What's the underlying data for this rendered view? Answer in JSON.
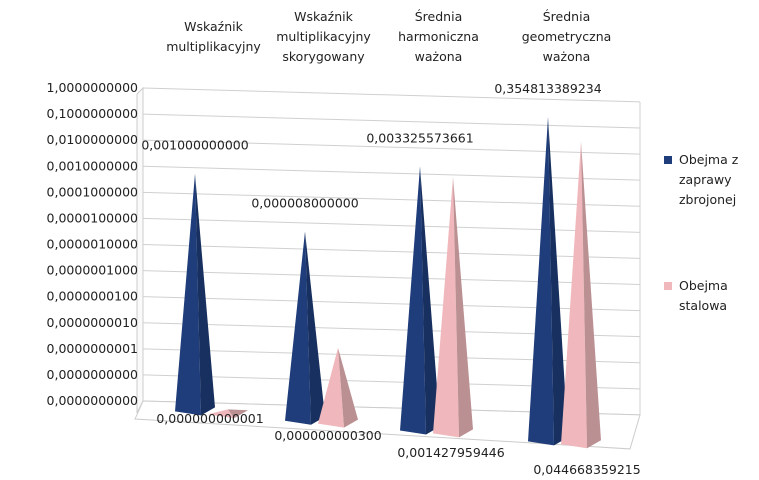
{
  "chart_data": {
    "type": "pyramid3d",
    "categories": [
      "Wskaźnik multiplikacyjny",
      "Wskaźnik multiplikacyjny skorygowany",
      "Średnia harmoniczna ważona",
      "Średnia geometryczna ważona"
    ],
    "series": [
      {
        "name": "Obejma z zaprawy zbrojonej",
        "color": "#1f3d7a",
        "values": [
          0.001,
          8e-06,
          0.003325573661,
          0.354813389234
        ],
        "value_labels": [
          "0,001000000000",
          "0,000008000000",
          "0,003325573661",
          "0,354813389234"
        ]
      },
      {
        "name": "Obejma stalowa",
        "color": "#f0b8bd",
        "values": [
          1e-12,
          3e-10,
          0.001427959446,
          0.044668359215
        ],
        "value_labels": [
          "0,000000000001",
          "0,000000000300",
          "0,001427959446",
          "0,044668359215"
        ]
      }
    ],
    "log_scale": true,
    "ylim": [
      1e-12,
      1
    ],
    "yticks": [
      {
        "value": 1,
        "label": "1,0000000000"
      },
      {
        "value": 0.1,
        "label": "0,1000000000"
      },
      {
        "value": 0.01,
        "label": "0,0100000000"
      },
      {
        "value": 0.001,
        "label": "0,0010000000"
      },
      {
        "value": 0.0001,
        "label": "0,0001000000"
      },
      {
        "value": 1e-05,
        "label": "0,0000100000"
      },
      {
        "value": 1e-06,
        "label": "0,0000010000"
      },
      {
        "value": 1e-07,
        "label": "0,0000001000"
      },
      {
        "value": 1e-08,
        "label": "0,0000000100"
      },
      {
        "value": 1e-09,
        "label": "0,0000000010"
      },
      {
        "value": 1e-10,
        "label": "0,0000000001"
      },
      {
        "value": 1e-11,
        "label": "0,0000000000"
      },
      {
        "value": 1e-12,
        "label": "0,0000000000"
      }
    ],
    "grid": true,
    "legend": "right"
  }
}
